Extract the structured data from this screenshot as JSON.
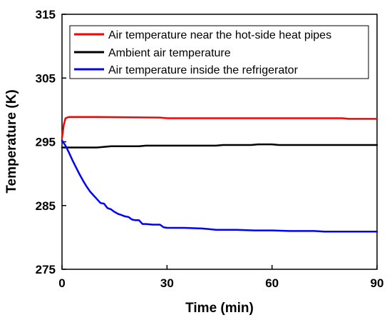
{
  "chart_data": {
    "type": "line",
    "xlabel": "Time (min)",
    "ylabel": "Temperature (K)",
    "xlim": [
      0,
      90
    ],
    "ylim": [
      275,
      315
    ],
    "xticks": [
      0,
      30,
      60,
      90
    ],
    "yticks": [
      275,
      285,
      295,
      305,
      315
    ],
    "grid": false,
    "legend_position": "top-right",
    "series": [
      {
        "name": "Air temperature near the hot-side heat pipes",
        "color": "#ff0000",
        "x": [
          0,
          0.5,
          1,
          2,
          10,
          28,
          30,
          80,
          82,
          90
        ],
        "y": [
          295.6,
          297.7,
          298.7,
          298.9,
          298.9,
          298.8,
          298.7,
          298.7,
          298.6,
          298.6
        ]
      },
      {
        "name": "Ambient air temperature",
        "color": "#000000",
        "x": [
          0,
          1,
          10,
          12,
          14,
          22,
          24,
          44,
          46,
          54,
          56,
          60,
          62,
          90
        ],
        "y": [
          294.1,
          294.1,
          294.1,
          294.2,
          294.3,
          294.3,
          294.4,
          294.4,
          294.5,
          294.5,
          294.6,
          294.6,
          294.5,
          294.5
        ]
      },
      {
        "name": "Air temperature inside the refrigerator",
        "color": "#0000ff",
        "x": [
          0,
          1,
          2,
          3,
          4,
          5,
          6,
          7,
          8,
          9,
          10,
          11,
          12,
          13,
          14,
          15,
          16,
          17,
          18,
          19,
          20,
          21,
          22,
          23,
          24,
          26,
          28,
          29,
          30,
          35,
          40,
          42,
          44,
          50,
          55,
          57,
          60,
          65,
          70,
          72,
          75,
          80,
          85,
          90
        ],
        "y": [
          295.2,
          294.4,
          293.3,
          292.1,
          291.0,
          289.9,
          288.9,
          288.0,
          287.2,
          286.6,
          286.0,
          285.4,
          285.3,
          284.6,
          284.4,
          284.0,
          283.7,
          283.5,
          283.3,
          283.2,
          282.8,
          282.7,
          282.7,
          282.1,
          282.1,
          282.0,
          282.0,
          281.6,
          281.5,
          281.5,
          281.4,
          281.3,
          281.2,
          281.2,
          281.1,
          281.1,
          281.1,
          281.0,
          281.0,
          281.0,
          280.9,
          280.9,
          280.9,
          280.9
        ]
      }
    ]
  }
}
